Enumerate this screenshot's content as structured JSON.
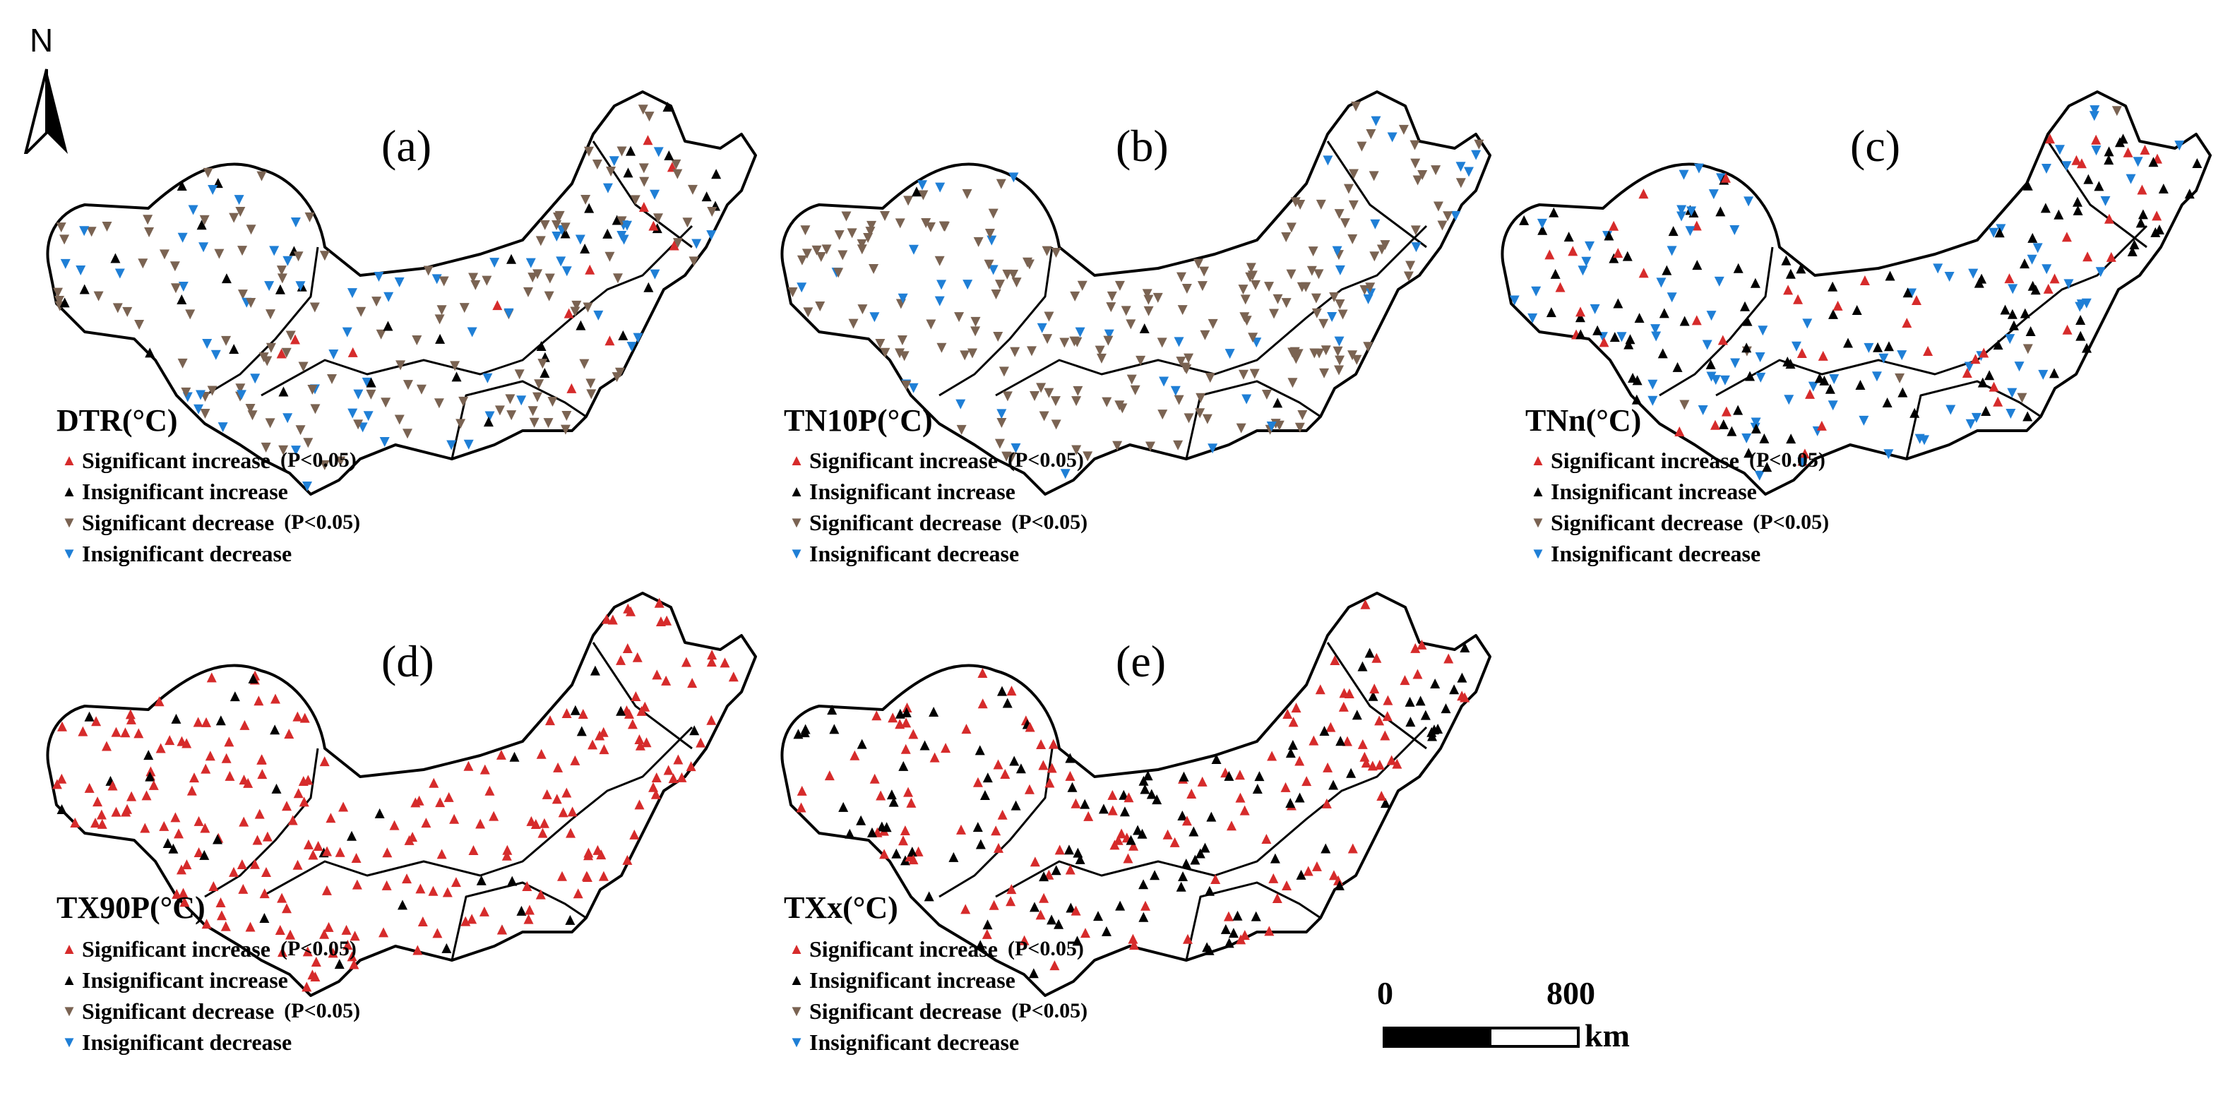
{
  "north_arrow": {
    "letter": "N"
  },
  "legend": {
    "items": [
      {
        "label": "Significant increase",
        "pvalue": "(P<0.05)",
        "symbol": "▲",
        "color": "#d62b2b"
      },
      {
        "label": "Insignificant increase",
        "pvalue": "",
        "symbol": "▲",
        "color": "#000000"
      },
      {
        "label": "Significant decrease",
        "pvalue": "(P<0.05)",
        "symbol": "▼",
        "color": "#7a6352"
      },
      {
        "label": "Insignificant decrease",
        "pvalue": "",
        "symbol": "▼",
        "color": "#1f7fd6"
      }
    ]
  },
  "panels": [
    {
      "id": "a",
      "label": "(a)",
      "index": "DTR(°C)",
      "mix": {
        "sig_inc": 0.06,
        "ins_inc": 0.16,
        "sig_dec": 0.5,
        "ins_dec": 0.28
      }
    },
    {
      "id": "b",
      "label": "(b)",
      "index": "TN10P(°C)",
      "mix": {
        "sig_inc": 0.0,
        "ins_inc": 0.02,
        "sig_dec": 0.78,
        "ins_dec": 0.2
      }
    },
    {
      "id": "c",
      "label": "(c)",
      "index": "TNn(°C)",
      "mix": {
        "sig_inc": 0.22,
        "ins_inc": 0.34,
        "sig_dec": 0.04,
        "ins_dec": 0.4
      }
    },
    {
      "id": "d",
      "label": "(d)",
      "index": "TX90P(°C)",
      "mix": {
        "sig_inc": 0.86,
        "ins_inc": 0.14,
        "sig_dec": 0.0,
        "ins_dec": 0.0
      }
    },
    {
      "id": "e",
      "label": "(e)",
      "index": "TXx(°C)",
      "mix": {
        "sig_inc": 0.55,
        "ins_inc": 0.45,
        "sig_dec": 0.0,
        "ins_dec": 0.0
      }
    }
  ],
  "scale_bar": {
    "start": "0",
    "end": "800",
    "unit": "km"
  }
}
